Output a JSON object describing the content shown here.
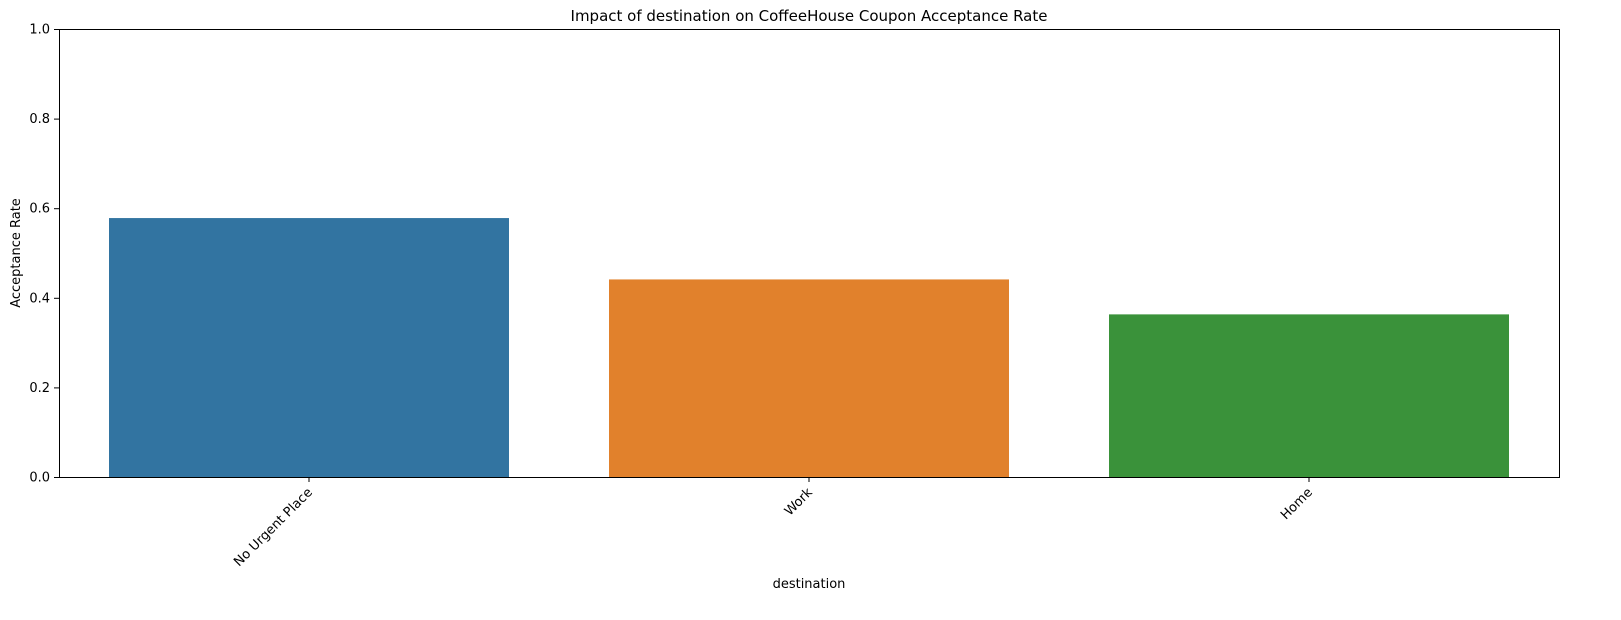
{
  "chart_data": {
    "type": "bar",
    "title": "Impact of destination on CoffeeHouse Coupon Acceptance Rate",
    "xlabel": "destination",
    "ylabel": "Acceptance Rate",
    "categories": [
      "No Urgent Place",
      "Work",
      "Home"
    ],
    "values": [
      0.578,
      0.441,
      0.363
    ],
    "colors": [
      "#3274a1",
      "#e1812c",
      "#3a923a"
    ],
    "ylim": [
      0,
      1
    ],
    "yticks": [
      0.0,
      0.2,
      0.4,
      0.6,
      0.8,
      1.0
    ],
    "ytick_labels": [
      "0.0",
      "0.2",
      "0.4",
      "0.6",
      "0.8",
      "1.0"
    ],
    "xtick_rotation": "45 degrees",
    "grid": false,
    "legend": "none"
  }
}
